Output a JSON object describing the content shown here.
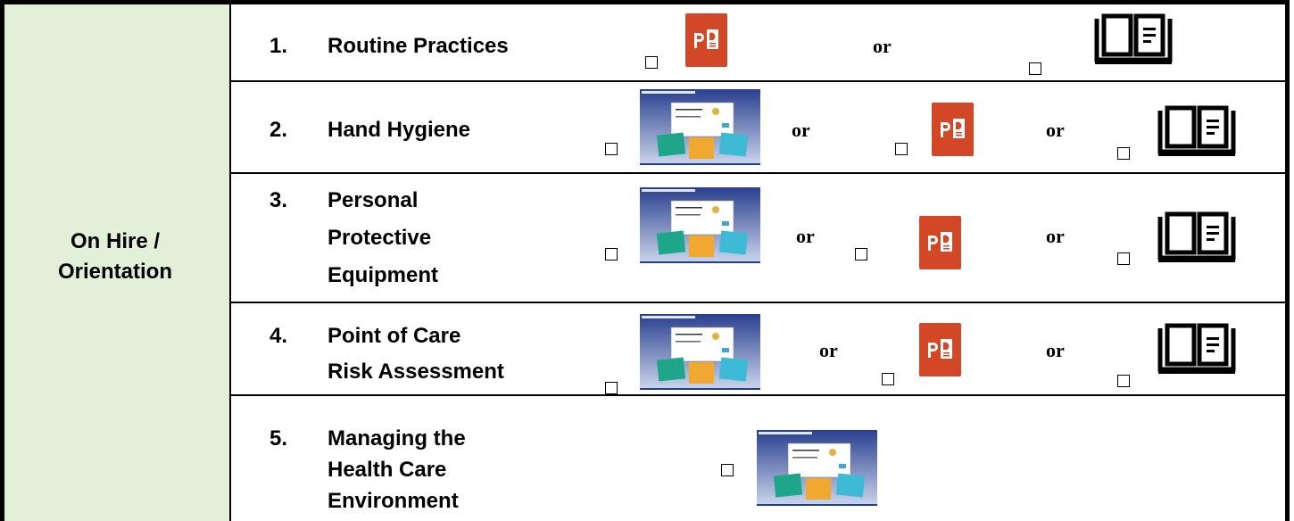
{
  "header_cell": {
    "lines": [
      "On Hire /",
      "Orientation"
    ]
  },
  "rows": [
    {
      "number": "1.",
      "title_lines": [
        "Routine Practices"
      ],
      "separators": [
        "or"
      ]
    },
    {
      "number": "2.",
      "title_lines": [
        "Hand Hygiene"
      ],
      "separators": [
        "or",
        "or"
      ]
    },
    {
      "number": "3.",
      "title_lines": [
        "Personal",
        "Protective",
        "Equipment"
      ],
      "separators": [
        "or",
        "or"
      ]
    },
    {
      "number": "4.",
      "title_lines": [
        "Point of Care",
        "Risk Assessment"
      ],
      "separators": [
        "or",
        "or"
      ]
    },
    {
      "number": "5.",
      "title_lines": [
        "Managing the",
        "Health Care",
        "Environment"
      ],
      "separators": []
    }
  ]
}
